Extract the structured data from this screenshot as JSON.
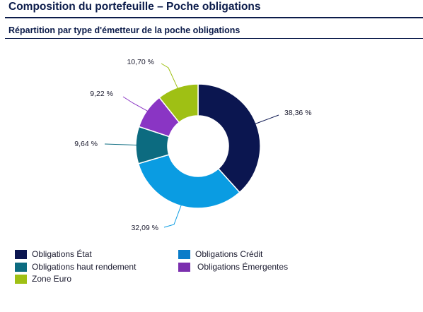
{
  "header": {
    "title": "Composition du portefeuille – Poche obligations",
    "subtitle": "Répartition par type d'émetteur de la poche obligations"
  },
  "chart_data": {
    "type": "pie",
    "donut": true,
    "categories": [
      "Obligations État",
      "Obligations Crédit",
      "Obligations haut rendement",
      "Obligations Émergentes",
      "Zone Euro"
    ],
    "values": [
      38.36,
      32.09,
      9.64,
      9.22,
      10.7
    ],
    "value_labels": [
      "38,36 %",
      "32,09 %",
      "9,64 %",
      "9,22 %",
      "10,70 %"
    ],
    "colors": [
      "#0b1650",
      "#0a9ce2",
      "#0c6b80",
      "#8a35c4",
      "#9fc014"
    ],
    "legend": [
      {
        "label": "Obligations État",
        "color": "#0b1650"
      },
      {
        "label": "Obligations Crédit",
        "color": "#0a7cc9"
      },
      {
        "label": "Obligations haut rendement",
        "color": "#0c6b80"
      },
      {
        "label": "Obligations Émergentes",
        "color": "#7b2fae"
      },
      {
        "label": "Zone Euro",
        "color": "#9fc014"
      }
    ],
    "legend_position": "bottom-left",
    "title": "Répartition par type d'émetteur de la poche obligations"
  }
}
